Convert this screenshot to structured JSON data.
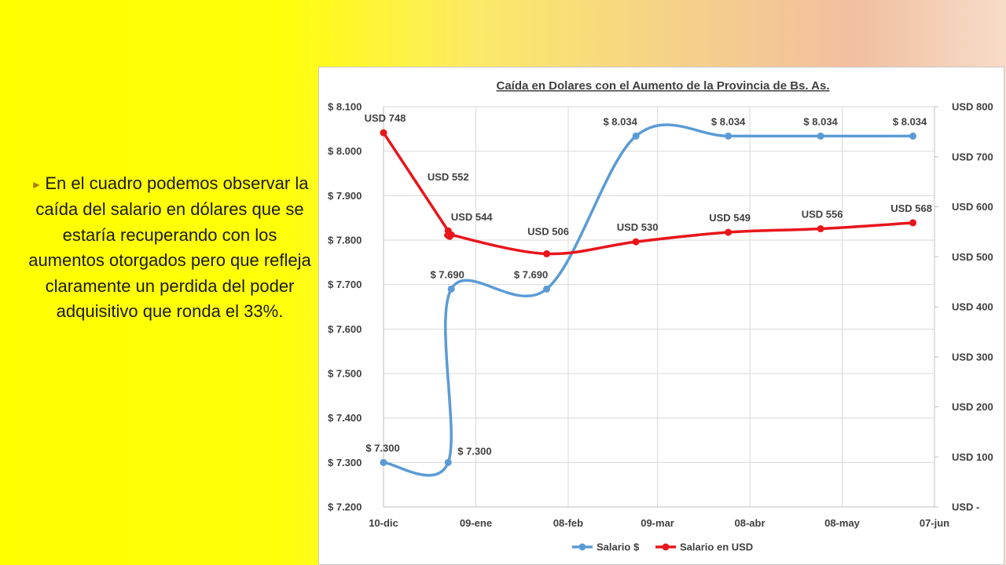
{
  "side_text": "En el cuadro podemos observar la caída del salario en dólares que se estaría recuperando con los aumentos otorgados pero que refleja claramente un perdida del poder adquisitivo que ronda el 33%.",
  "colors": {
    "salario_pesos": "#5b9bd5",
    "salario_usd": "#e8161b",
    "bullet": "#b07d00"
  },
  "chart_data": {
    "type": "line",
    "title": "Caída en Dolares con el  Aumento de la Provincia de Bs. As.",
    "x_tick_labels": [
      "10-dic",
      "09-ene",
      "08-feb",
      "09-mar",
      "08-abr",
      "08-may",
      "07-jun"
    ],
    "x_tick_days": [
      0,
      30,
      60,
      89,
      119,
      149,
      179
    ],
    "y_left_ticks": [
      "$ 7.200",
      "$ 7.300",
      "$ 7.400",
      "$ 7.500",
      "$ 7.600",
      "$ 7.700",
      "$ 7.800",
      "$ 7.900",
      "$ 8.000",
      "$ 8.100"
    ],
    "y_left_range": [
      7200,
      8100
    ],
    "y_right_ticks": [
      "USD -",
      "USD 100",
      "USD 200",
      "USD 300",
      "USD 400",
      "USD 500",
      "USD 600",
      "USD 700",
      "USD 800"
    ],
    "y_right_range": [
      0,
      800
    ],
    "x_range": [
      0,
      179
    ],
    "grid": true,
    "legend_position": "bottom",
    "series": [
      {
        "name": "Salario $",
        "axis": "left",
        "points": [
          {
            "x": 0,
            "y": 7300,
            "label": "$ 7.300"
          },
          {
            "x": 21,
            "y": 7300,
            "label": "$ 7.300"
          },
          {
            "x": 22,
            "y": 7690,
            "label": "$ 7.690"
          },
          {
            "x": 53,
            "y": 7690,
            "label": "$ 7.690"
          },
          {
            "x": 82,
            "y": 8034,
            "label": "$ 8.034"
          },
          {
            "x": 112,
            "y": 8034,
            "label": "$ 8.034"
          },
          {
            "x": 142,
            "y": 8034,
            "label": "$ 8.034"
          },
          {
            "x": 172,
            "y": 8034,
            "label": "$ 8.034"
          }
        ]
      },
      {
        "name": "Salario en USD",
        "axis": "right",
        "points": [
          {
            "x": 0,
            "y": 748,
            "label": "USD 748"
          },
          {
            "x": 21,
            "y": 552,
            "label": "USD 552"
          },
          {
            "x": 22,
            "y": 544,
            "label": "USD 544"
          },
          {
            "x": 53,
            "y": 506,
            "label": "USD 506"
          },
          {
            "x": 82,
            "y": 530,
            "label": "USD 530"
          },
          {
            "x": 112,
            "y": 549,
            "label": "USD 549"
          },
          {
            "x": 142,
            "y": 556,
            "label": "USD 556"
          },
          {
            "x": 172,
            "y": 568,
            "label": "USD 568"
          }
        ]
      }
    ]
  }
}
